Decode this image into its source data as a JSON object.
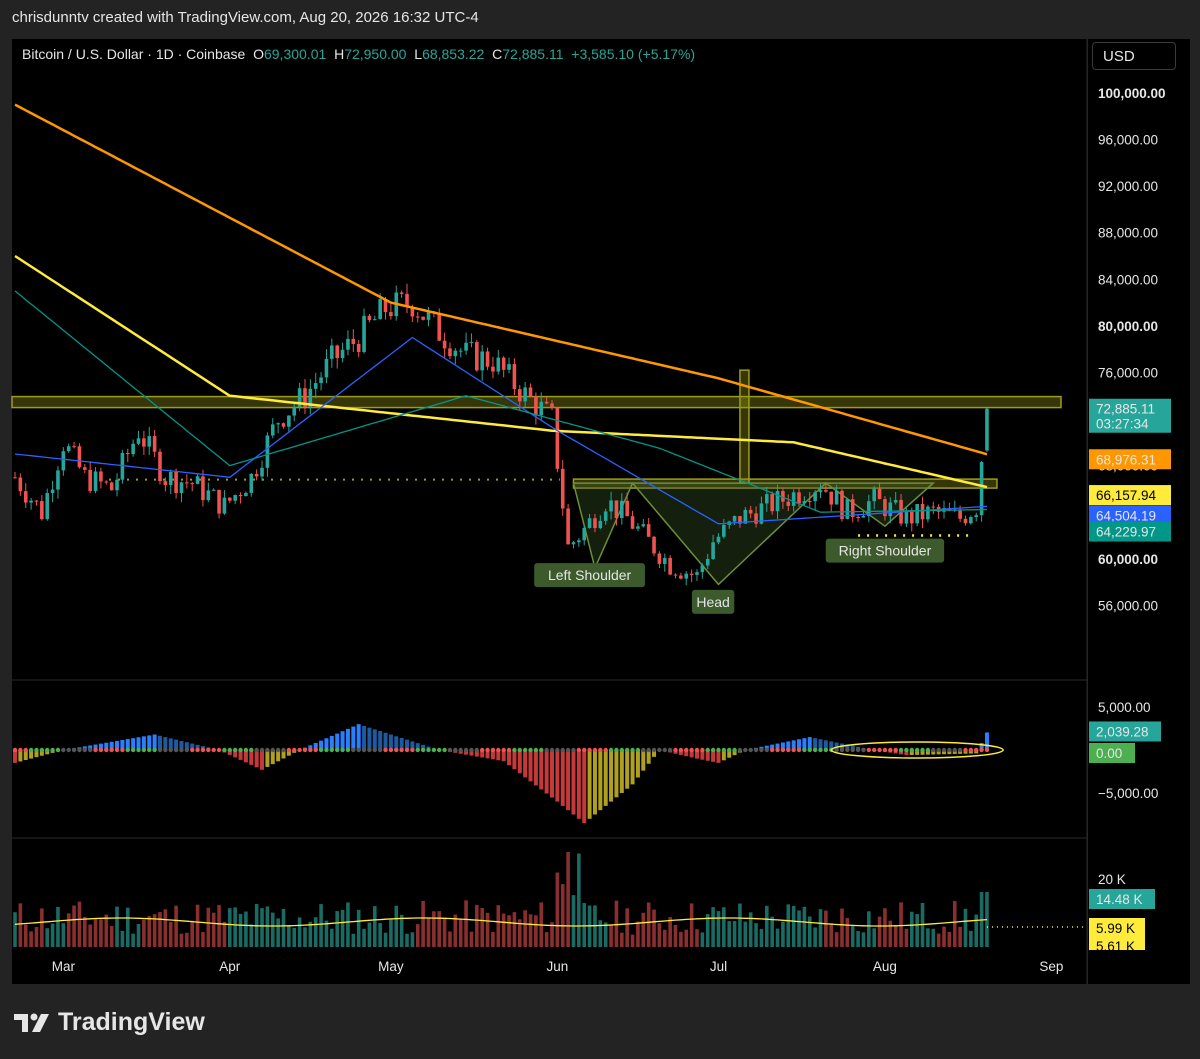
{
  "header": {
    "caption": "chrisdunntv created with TradingView.com, Aug 20, 2026 16:32 UTC-4"
  },
  "legend": {
    "symbol": "Bitcoin / U.S. Dollar · 1D · Coinbase",
    "o_label": "O",
    "o_value": "69,300.01",
    "h_label": "H",
    "h_value": "72,950.00",
    "l_label": "L",
    "l_value": "68,853.22",
    "c_label": "C",
    "c_value": "72,885.11",
    "change": "+3,585.10 (+5.17%)"
  },
  "currency_button": "USD",
  "brand": {
    "name": "TradingView"
  },
  "colors": {
    "up": "#26a69a",
    "down": "#ef5350",
    "ma200": "#ff9800",
    "ma100": "#ffeb3b",
    "ma20": "#2962ff",
    "ma50": "#009688",
    "neckline": "#9c9c1a",
    "label_bg": "#3c5a2c"
  },
  "chart_data": [
    {
      "type": "candlestick",
      "symbol": "Bitcoin / U.S. Dollar",
      "timeframe": "1D",
      "xlabel": "",
      "ylabel": "",
      "x_ticks": [
        "Mar",
        "Apr",
        "May",
        "Jun",
        "Jul",
        "Aug",
        "Sep"
      ],
      "y_ticks": [
        "100,000.00",
        "96,000.00",
        "92,000.00",
        "88,000.00",
        "84,000.00",
        "80,000.00",
        "76,000.00",
        "68,000.00",
        "60,000.00",
        "56,000.00"
      ],
      "ylim": [
        55000,
        102000
      ],
      "price_path": [
        [
          "Feb 20",
          67000
        ],
        [
          "Feb 25",
          64000
        ],
        [
          "Mar 1",
          70000
        ],
        [
          "Mar 5",
          67000
        ],
        [
          "Mar 10",
          66000
        ],
        [
          "Mar 15",
          71000
        ],
        [
          "Mar 20",
          67000
        ],
        [
          "Mar 25",
          66500
        ],
        [
          "Mar 31",
          64500
        ],
        [
          "Apr 5",
          67000
        ],
        [
          "Apr 10",
          72000
        ],
        [
          "Apr 15",
          74000
        ],
        [
          "Apr 20",
          77000
        ],
        [
          "Apr 25",
          79000
        ],
        [
          "Apr 30",
          81500
        ],
        [
          "May 5",
          82000
        ],
        [
          "May 10",
          79500
        ],
        [
          "May 15",
          77500
        ],
        [
          "May 20",
          77000
        ],
        [
          "May 25",
          74500
        ],
        [
          "May 31",
          72000
        ],
        [
          "Jun 3",
          61000
        ],
        [
          "Jun 6",
          62500
        ],
        [
          "Jun 10",
          65000
        ],
        [
          "Jun 14",
          63500
        ],
        [
          "Jun 18",
          61500
        ],
        [
          "Jun 22",
          59500
        ],
        [
          "Jun 27",
          58500
        ],
        [
          "Jun 30",
          61500
        ],
        [
          "Jul 5",
          63500
        ],
        [
          "Jul 10",
          64500
        ],
        [
          "Jul 15",
          65500
        ],
        [
          "Jul 20",
          66500
        ],
        [
          "Jul 25",
          64000
        ],
        [
          "Jul 30",
          65000
        ],
        [
          "Aug 5",
          63500
        ],
        [
          "Aug 10",
          64000
        ],
        [
          "Aug 15",
          63500
        ],
        [
          "Aug 18",
          64500
        ],
        [
          "Aug 20",
          72885.11
        ]
      ],
      "series": [
        {
          "name": "MA",
          "color": "#ff9800",
          "points": [
            [
              "Feb 20",
              99000
            ],
            [
              "May 1",
              82000
            ],
            [
              "Jul 1",
              75500
            ],
            [
              "Aug 20",
              68976.31
            ]
          ]
        },
        {
          "name": "MA",
          "color": "#ffeb3b",
          "points": [
            [
              "Feb 20",
              86000
            ],
            [
              "Apr 1",
              74000
            ],
            [
              "May 31",
              71000
            ],
            [
              "Jul 15",
              70000
            ],
            [
              "Aug 20",
              66157.94
            ]
          ]
        },
        {
          "name": "MA",
          "color": "#2962ff",
          "points": [
            [
              "Feb 20",
              69000
            ],
            [
              "Apr 1",
              67000
            ],
            [
              "May 5",
              79000
            ],
            [
              "Jun 1",
              71000
            ],
            [
              "Jul 1",
              63000
            ],
            [
              "Aug 20",
              64504.19
            ]
          ]
        },
        {
          "name": "MA",
          "color": "#009688",
          "points": [
            [
              "Feb 20",
              83000
            ],
            [
              "Apr 1",
              68000
            ],
            [
              "May 15",
              74000
            ],
            [
              "Jun 20",
              69500
            ],
            [
              "Jul 20",
              64000
            ],
            [
              "Aug 20",
              64229.97
            ]
          ]
        }
      ],
      "price_labels": [
        {
          "value": "72,885.11",
          "sub": "03:27:34",
          "color": "#26a69a"
        },
        {
          "value": "68,976.31",
          "color": "#ff9800"
        },
        {
          "value": "66,157.94",
          "color": "#ffeb3b"
        },
        {
          "value": "64,504.19",
          "color": "#2962ff"
        },
        {
          "value": "64,229.97",
          "color": "#009688"
        }
      ],
      "annotations": [
        "Left Shoulder",
        "Head",
        "Right Shoulder"
      ],
      "levels": [
        {
          "kind": "resistance",
          "value": 73500
        },
        {
          "kind": "neckline",
          "value": 66500
        },
        {
          "kind": "dotted",
          "value": 66800
        }
      ]
    },
    {
      "type": "histogram",
      "name": "oscillator",
      "y_ticks": [
        "5,000.00",
        "0.00",
        "−5,000.00"
      ],
      "ylim": [
        -9000,
        6000
      ],
      "last_value": "2,039.28",
      "zero_label": "0.00",
      "profile": [
        [
          "Feb 20",
          -1500
        ],
        [
          "Mar 1",
          0
        ],
        [
          "Mar 18",
          1800
        ],
        [
          "Mar 30",
          0
        ],
        [
          "Apr 7",
          -2300
        ],
        [
          "Apr 14",
          0
        ],
        [
          "Apr 25",
          3000
        ],
        [
          "May 10",
          0
        ],
        [
          "May 22",
          -1300
        ],
        [
          "Jun 1",
          -6000
        ],
        [
          "Jun 6",
          -8500
        ],
        [
          "Jun 15",
          -4000
        ],
        [
          "Jun 20",
          0
        ],
        [
          "Jun 27",
          -1000
        ],
        [
          "Jul 1",
          -1500
        ],
        [
          "Jul 6",
          0
        ],
        [
          "Jul 18",
          1500
        ],
        [
          "Jul 30",
          0
        ],
        [
          "Aug 5",
          -600
        ],
        [
          "Aug 18",
          -400
        ],
        [
          "Aug 20",
          2039.28
        ]
      ]
    },
    {
      "type": "volume",
      "y_ticks": [
        "20 K"
      ],
      "labels": [
        "14.48 K",
        "5.99 K",
        "5.61 K"
      ]
    }
  ]
}
